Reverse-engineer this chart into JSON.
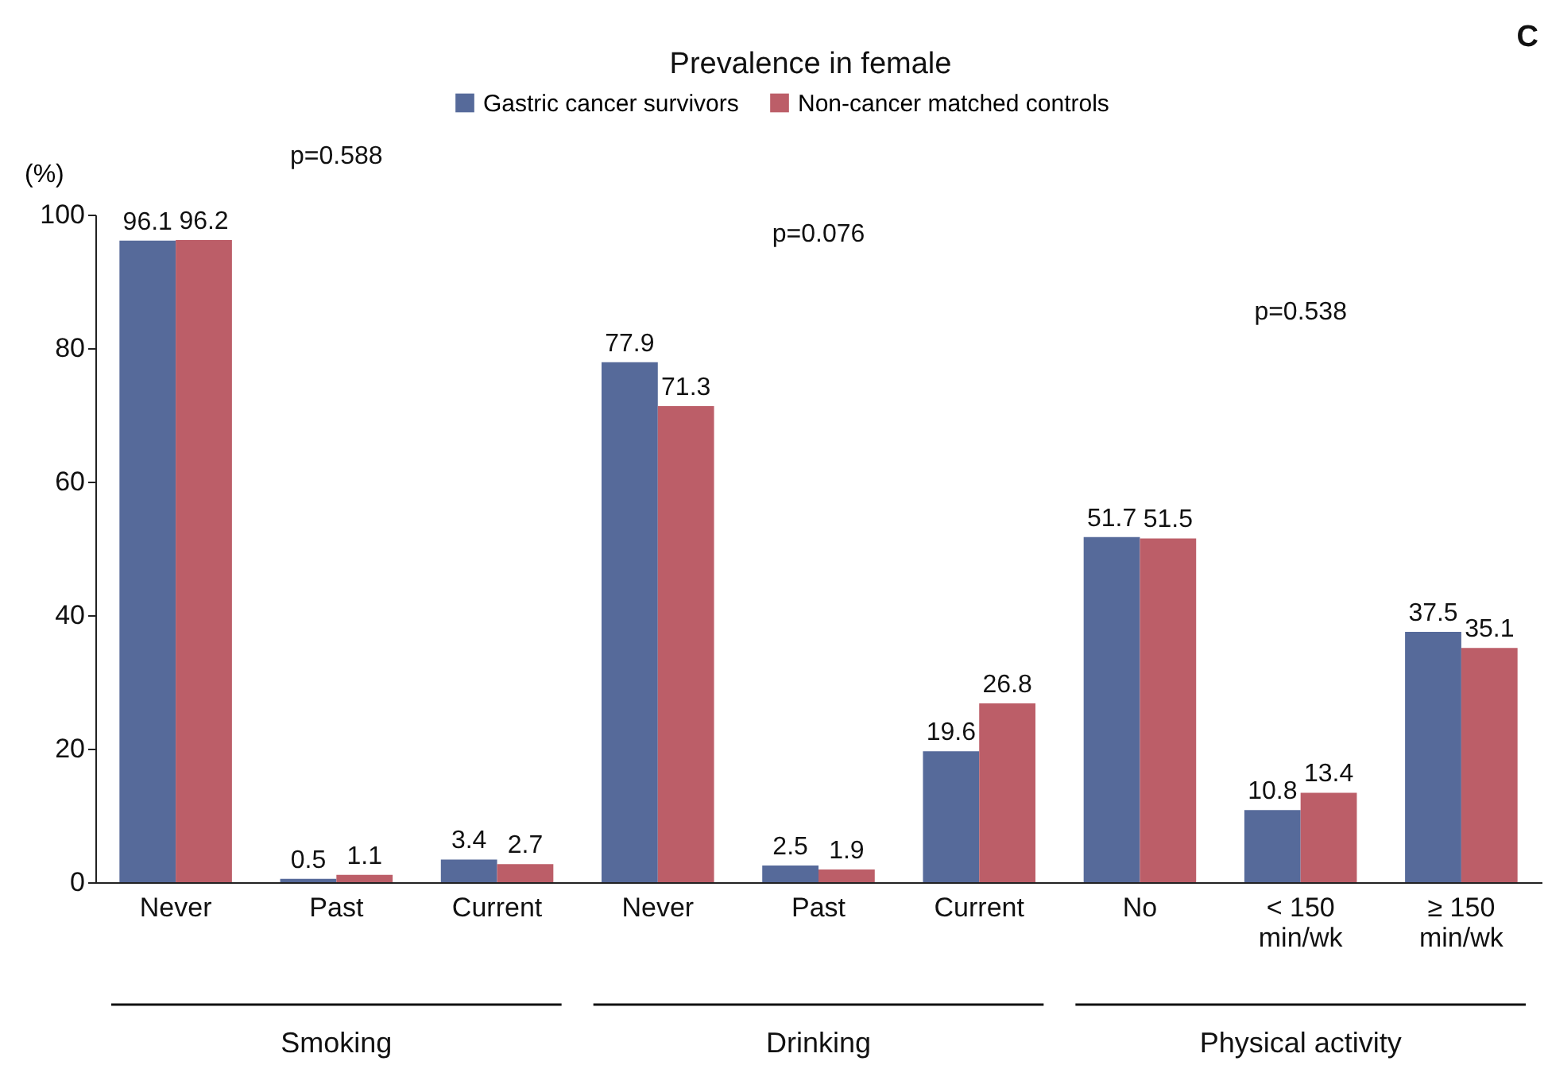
{
  "chart_data": {
    "type": "bar",
    "title": "Prevalence in female",
    "ylabel": "(%)",
    "categories": [
      "Never",
      "Past",
      "Current",
      "Never",
      "Past",
      "Current",
      "No",
      "< 150 min/wk",
      "≥ 150 min/wk"
    ],
    "series": [
      {
        "name": "Gastric cancer survivors",
        "color": "#566a9a",
        "values": [
          96.1,
          0.5,
          3.4,
          77.9,
          2.5,
          19.6,
          51.7,
          10.8,
          37.5
        ]
      },
      {
        "name": "Non-cancer matched controls",
        "color": "#bc5e68",
        "values": [
          96.2,
          1.1,
          2.7,
          71.3,
          1.9,
          26.8,
          51.5,
          13.4,
          35.1
        ]
      }
    ],
    "ylim": [
      0,
      100
    ],
    "yticks": [
      0,
      20,
      40,
      60,
      80,
      100
    ],
    "data_labels": true,
    "grid": false,
    "legend": "top",
    "annotations": [
      "p=0.588",
      "p=0.076",
      "p=0.538",
      "Smoking",
      "Drinking",
      "Physical activity",
      "C"
    ]
  }
}
